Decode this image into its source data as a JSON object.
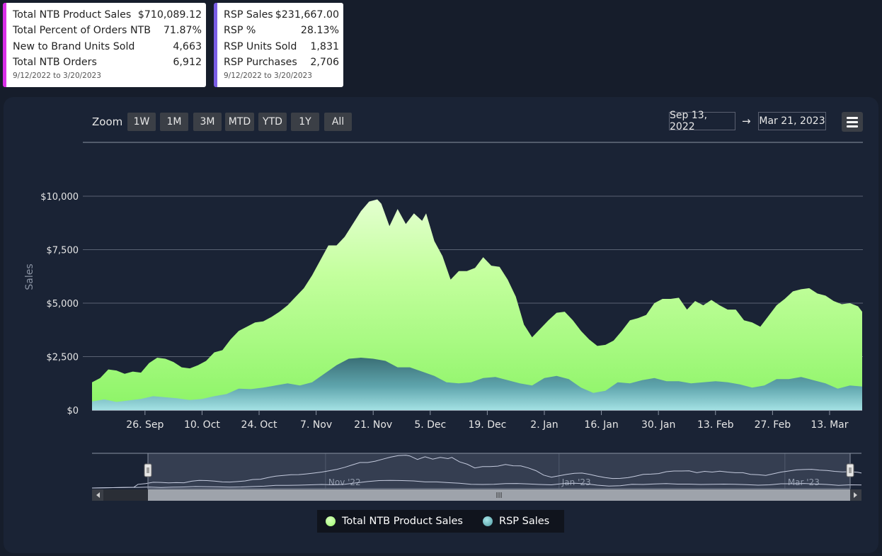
{
  "summary_cards": [
    {
      "rows": [
        {
          "label": "Total NTB Product Sales",
          "value": "$710,089.12"
        },
        {
          "label": "Total Percent of Orders NTB",
          "value": "71.87%"
        },
        {
          "label": "New to Brand Units Sold",
          "value": "4,663"
        },
        {
          "label": "Total NTB Orders",
          "value": "6,912"
        }
      ],
      "range": "9/12/2022 to 3/20/2023",
      "accent": "#d92fe8"
    },
    {
      "rows": [
        {
          "label": "RSP Sales",
          "value": "$231,667.00"
        },
        {
          "label": "RSP %",
          "value": "28.13%"
        },
        {
          "label": "RSP Units Sold",
          "value": "1,831"
        },
        {
          "label": "RSP Purchases",
          "value": "2,706"
        }
      ],
      "range": "9/12/2022 to 3/20/2023",
      "accent": "#7a5ee6"
    }
  ],
  "toolbar": {
    "zoom_label": "Zoom",
    "zoom_buttons": [
      "1W",
      "1M",
      "3M",
      "MTD",
      "YTD",
      "1Y",
      "All"
    ],
    "date_from": "Sep 13, 2022",
    "date_arrow": "→",
    "date_to": "Mar 21, 2023",
    "menu_icon": "hamburger-menu-icon"
  },
  "chart_data": {
    "type": "area",
    "ylabel": "Sales",
    "ylim": [
      0,
      10000
    ],
    "y_ticks": [
      {
        "value": 0,
        "label": "$0"
      },
      {
        "value": 2500,
        "label": "$2,500"
      },
      {
        "value": 5000,
        "label": "$5,000"
      },
      {
        "value": 7500,
        "label": "$7,500"
      },
      {
        "value": 10000,
        "label": "$10,000"
      }
    ],
    "x_ticks": [
      {
        "date": "2022-09-26",
        "label": "26. Sep"
      },
      {
        "date": "2022-10-10",
        "label": "10. Oct"
      },
      {
        "date": "2022-10-24",
        "label": "24. Oct"
      },
      {
        "date": "2022-11-07",
        "label": "7. Nov"
      },
      {
        "date": "2022-11-21",
        "label": "21. Nov"
      },
      {
        "date": "2022-12-05",
        "label": "5. Dec"
      },
      {
        "date": "2022-12-19",
        "label": "19. Dec"
      },
      {
        "date": "2023-01-02",
        "label": "2. Jan"
      },
      {
        "date": "2023-01-16",
        "label": "16. Jan"
      },
      {
        "date": "2023-01-30",
        "label": "30. Jan"
      },
      {
        "date": "2023-02-13",
        "label": "13. Feb"
      },
      {
        "date": "2023-02-27",
        "label": "27. Feb"
      },
      {
        "date": "2023-03-13",
        "label": "13. Mar"
      }
    ],
    "navigator_labels": [
      {
        "date": "2022-11-01",
        "label": "Nov '22"
      },
      {
        "date": "2023-01-01",
        "label": "Jan '23"
      },
      {
        "date": "2023-03-01",
        "label": "Mar '23"
      }
    ],
    "x_range": [
      "2022-09-13",
      "2023-03-21"
    ],
    "navigator_range": [
      "2022-09-01",
      "2023-03-21"
    ],
    "grid": true,
    "legend_position": "bottom-center",
    "series": [
      {
        "name": "Total NTB Product Sales",
        "color": "#9dff6b",
        "points": [
          [
            "2022-09-13",
            1300
          ],
          [
            "2022-09-15",
            1500
          ],
          [
            "2022-09-17",
            1900
          ],
          [
            "2022-09-19",
            1850
          ],
          [
            "2022-09-21",
            1700
          ],
          [
            "2022-09-23",
            1800
          ],
          [
            "2022-09-25",
            1750
          ],
          [
            "2022-09-27",
            2200
          ],
          [
            "2022-09-29",
            2450
          ],
          [
            "2022-10-01",
            2400
          ],
          [
            "2022-10-03",
            2250
          ],
          [
            "2022-10-05",
            2000
          ],
          [
            "2022-10-07",
            1950
          ],
          [
            "2022-10-09",
            2100
          ],
          [
            "2022-10-11",
            2300
          ],
          [
            "2022-10-13",
            2700
          ],
          [
            "2022-10-15",
            2800
          ],
          [
            "2022-10-17",
            3300
          ],
          [
            "2022-10-19",
            3700
          ],
          [
            "2022-10-21",
            3900
          ],
          [
            "2022-10-23",
            4100
          ],
          [
            "2022-10-25",
            4150
          ],
          [
            "2022-10-27",
            4350
          ],
          [
            "2022-10-29",
            4600
          ],
          [
            "2022-10-31",
            4900
          ],
          [
            "2022-11-02",
            5300
          ],
          [
            "2022-11-04",
            5700
          ],
          [
            "2022-11-06",
            6300
          ],
          [
            "2022-11-08",
            7000
          ],
          [
            "2022-11-10",
            7700
          ],
          [
            "2022-11-12",
            7700
          ],
          [
            "2022-11-14",
            8100
          ],
          [
            "2022-11-16",
            8700
          ],
          [
            "2022-11-18",
            9300
          ],
          [
            "2022-11-20",
            9750
          ],
          [
            "2022-11-22",
            9850
          ],
          [
            "2022-11-23",
            9650
          ],
          [
            "2022-11-25",
            8600
          ],
          [
            "2022-11-27",
            9400
          ],
          [
            "2022-11-29",
            8700
          ],
          [
            "2022-12-01",
            9200
          ],
          [
            "2022-12-03",
            8850
          ],
          [
            "2022-12-04",
            9200
          ],
          [
            "2022-12-06",
            7900
          ],
          [
            "2022-12-08",
            7200
          ],
          [
            "2022-12-10",
            6100
          ],
          [
            "2022-12-12",
            6500
          ],
          [
            "2022-12-14",
            6500
          ],
          [
            "2022-12-16",
            6650
          ],
          [
            "2022-12-18",
            7150
          ],
          [
            "2022-12-20",
            6750
          ],
          [
            "2022-12-22",
            6700
          ],
          [
            "2022-12-24",
            6100
          ],
          [
            "2022-12-26",
            5300
          ],
          [
            "2022-12-28",
            4000
          ],
          [
            "2022-12-30",
            3400
          ],
          [
            "2023-01-01",
            3800
          ],
          [
            "2023-01-03",
            4200
          ],
          [
            "2023-01-05",
            4550
          ],
          [
            "2023-01-07",
            4600
          ],
          [
            "2023-01-09",
            4200
          ],
          [
            "2023-01-11",
            3700
          ],
          [
            "2023-01-13",
            3300
          ],
          [
            "2023-01-15",
            3000
          ],
          [
            "2023-01-17",
            3050
          ],
          [
            "2023-01-19",
            3250
          ],
          [
            "2023-01-21",
            3700
          ],
          [
            "2023-01-23",
            4200
          ],
          [
            "2023-01-25",
            4300
          ],
          [
            "2023-01-27",
            4450
          ],
          [
            "2023-01-29",
            5000
          ],
          [
            "2023-01-31",
            5200
          ],
          [
            "2023-02-02",
            5200
          ],
          [
            "2023-02-04",
            5250
          ],
          [
            "2023-02-06",
            4700
          ],
          [
            "2023-02-08",
            5100
          ],
          [
            "2023-02-10",
            4900
          ],
          [
            "2023-02-12",
            5150
          ],
          [
            "2023-02-14",
            4900
          ],
          [
            "2023-02-16",
            4700
          ],
          [
            "2023-02-18",
            4700
          ],
          [
            "2023-02-20",
            4200
          ],
          [
            "2023-02-22",
            4100
          ],
          [
            "2023-02-24",
            3900
          ],
          [
            "2023-02-26",
            4400
          ],
          [
            "2023-02-28",
            4900
          ],
          [
            "2023-03-02",
            5200
          ],
          [
            "2023-03-04",
            5550
          ],
          [
            "2023-03-06",
            5650
          ],
          [
            "2023-03-08",
            5700
          ],
          [
            "2023-03-10",
            5450
          ],
          [
            "2023-03-12",
            5350
          ],
          [
            "2023-03-14",
            5100
          ],
          [
            "2023-03-16",
            4950
          ],
          [
            "2023-03-18",
            5000
          ],
          [
            "2023-03-20",
            4850
          ],
          [
            "2023-03-21",
            4600
          ]
        ]
      },
      {
        "name": "RSP Sales",
        "color": "#6ab8c0",
        "points": [
          [
            "2022-09-13",
            400
          ],
          [
            "2022-09-16",
            500
          ],
          [
            "2022-09-19",
            380
          ],
          [
            "2022-09-22",
            450
          ],
          [
            "2022-09-25",
            520
          ],
          [
            "2022-09-28",
            650
          ],
          [
            "2022-10-01",
            600
          ],
          [
            "2022-10-04",
            550
          ],
          [
            "2022-10-07",
            470
          ],
          [
            "2022-10-10",
            520
          ],
          [
            "2022-10-13",
            650
          ],
          [
            "2022-10-16",
            750
          ],
          [
            "2022-10-19",
            1000
          ],
          [
            "2022-10-22",
            980
          ],
          [
            "2022-10-25",
            1050
          ],
          [
            "2022-10-28",
            1150
          ],
          [
            "2022-10-31",
            1250
          ],
          [
            "2022-11-03",
            1150
          ],
          [
            "2022-11-06",
            1300
          ],
          [
            "2022-11-09",
            1700
          ],
          [
            "2022-11-12",
            2100
          ],
          [
            "2022-11-15",
            2400
          ],
          [
            "2022-11-18",
            2450
          ],
          [
            "2022-11-21",
            2400
          ],
          [
            "2022-11-24",
            2300
          ],
          [
            "2022-11-27",
            2000
          ],
          [
            "2022-11-30",
            2000
          ],
          [
            "2022-12-03",
            1800
          ],
          [
            "2022-12-06",
            1600
          ],
          [
            "2022-12-09",
            1300
          ],
          [
            "2022-12-12",
            1250
          ],
          [
            "2022-12-15",
            1300
          ],
          [
            "2022-12-18",
            1500
          ],
          [
            "2022-12-21",
            1550
          ],
          [
            "2022-12-24",
            1400
          ],
          [
            "2022-12-27",
            1250
          ],
          [
            "2022-12-30",
            1150
          ],
          [
            "2023-01-02",
            1500
          ],
          [
            "2023-01-05",
            1600
          ],
          [
            "2023-01-08",
            1450
          ],
          [
            "2023-01-11",
            1050
          ],
          [
            "2023-01-14",
            800
          ],
          [
            "2023-01-17",
            900
          ],
          [
            "2023-01-20",
            1300
          ],
          [
            "2023-01-23",
            1250
          ],
          [
            "2023-01-26",
            1400
          ],
          [
            "2023-01-29",
            1500
          ],
          [
            "2023-02-01",
            1350
          ],
          [
            "2023-02-04",
            1350
          ],
          [
            "2023-02-07",
            1250
          ],
          [
            "2023-02-10",
            1300
          ],
          [
            "2023-02-13",
            1350
          ],
          [
            "2023-02-16",
            1300
          ],
          [
            "2023-02-19",
            1200
          ],
          [
            "2023-02-22",
            1050
          ],
          [
            "2023-02-25",
            1150
          ],
          [
            "2023-02-28",
            1450
          ],
          [
            "2023-03-03",
            1450
          ],
          [
            "2023-03-06",
            1550
          ],
          [
            "2023-03-09",
            1400
          ],
          [
            "2023-03-12",
            1250
          ],
          [
            "2023-03-15",
            1000
          ],
          [
            "2023-03-18",
            1150
          ],
          [
            "2023-03-21",
            1100
          ]
        ]
      }
    ]
  }
}
